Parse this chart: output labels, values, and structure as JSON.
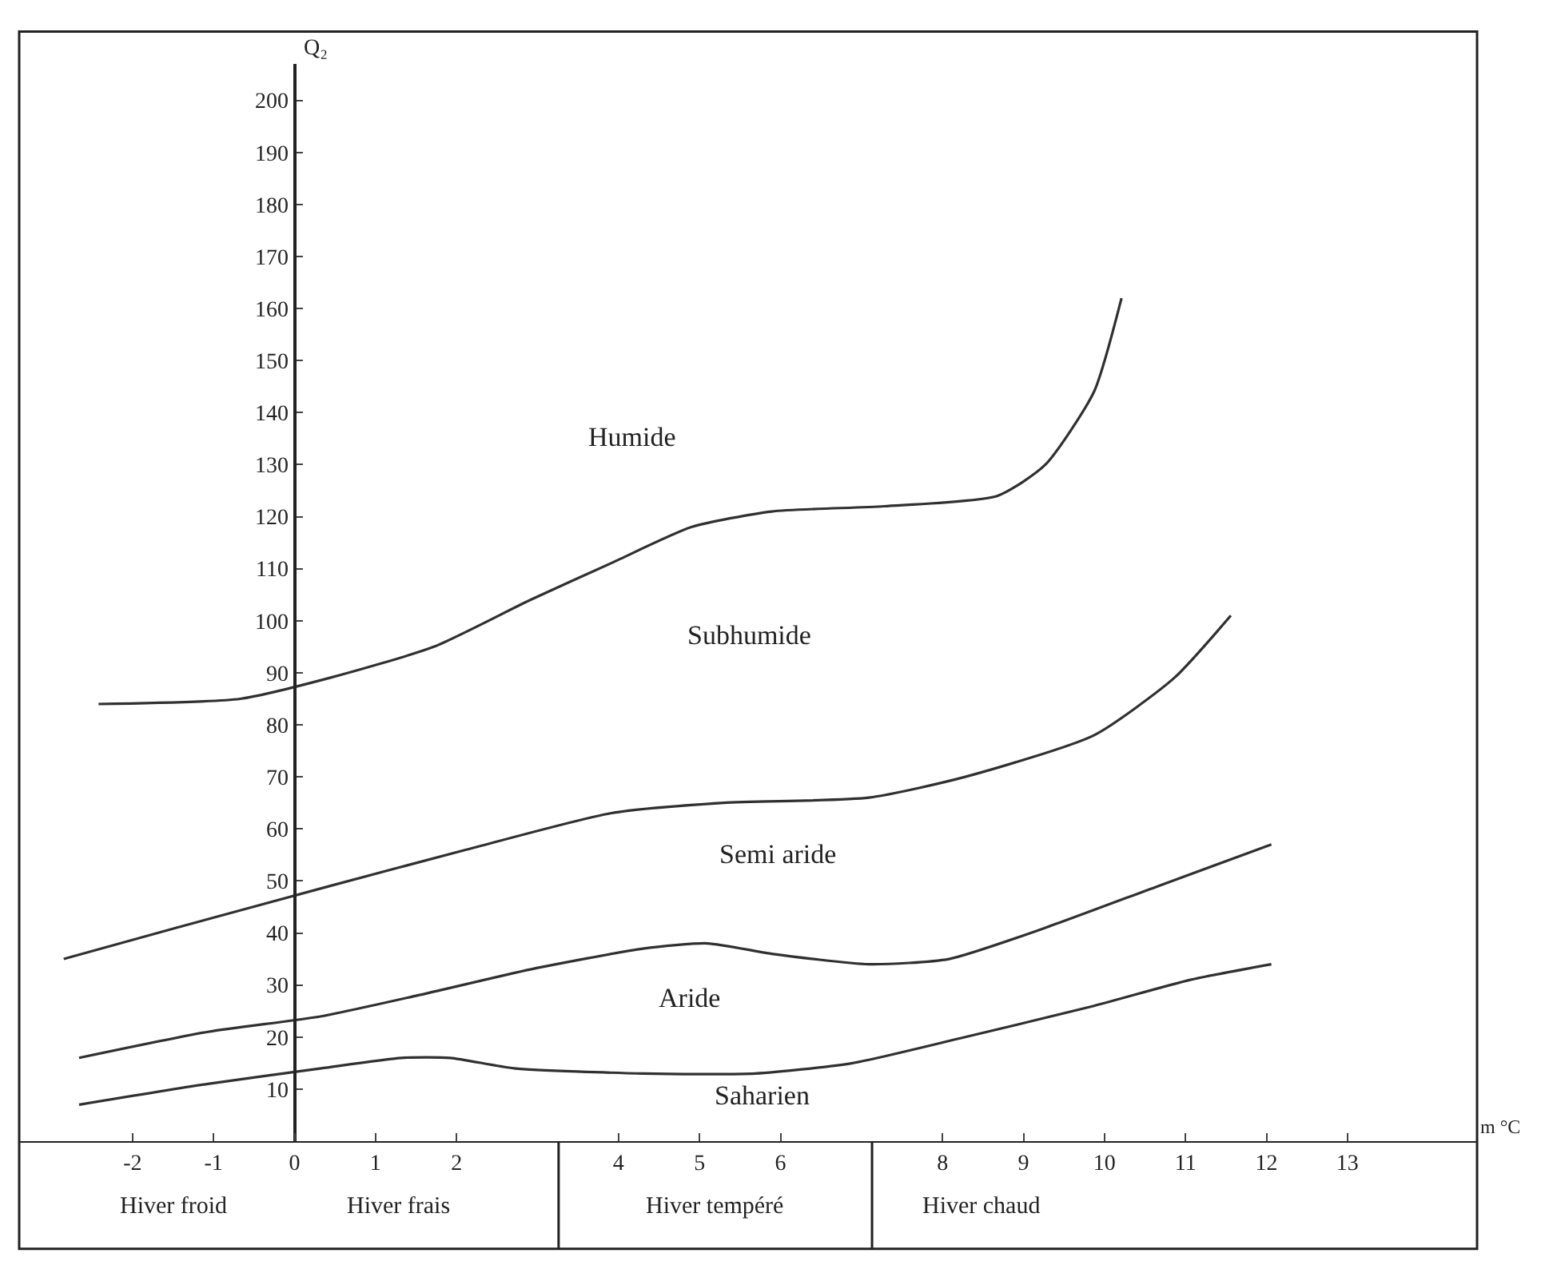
{
  "chart_data": {
    "type": "line",
    "xlabel": "m °C",
    "ylabel": "Q₂",
    "xlim": [
      -3.4,
      14.6
    ],
    "ylim": [
      0,
      207
    ],
    "xticks": [
      -2,
      -1,
      0,
      1,
      2,
      4,
      5,
      6,
      8,
      9,
      10,
      11,
      12,
      13
    ],
    "yticks": [
      10,
      20,
      30,
      40,
      50,
      60,
      70,
      80,
      90,
      100,
      110,
      120,
      130,
      140,
      150,
      160,
      170,
      180,
      190,
      200
    ],
    "marker": "none",
    "line_style": "solid",
    "series": [
      {
        "color": "#303030",
        "x": [
          -2.42,
          -0.67,
          0.43,
          1.72,
          2.91,
          3.9,
          4.9,
          5.89,
          7.28,
          8.68,
          9.27,
          9.87,
          10.21
        ],
        "values": [
          84,
          85,
          89,
          95,
          104,
          111,
          118,
          121,
          122,
          124,
          130,
          144,
          162
        ]
      },
      {
        "color": "#303030",
        "x": [
          -2.85,
          -1.46,
          0.43,
          2.12,
          3.9,
          5.3,
          7.09,
          8.28,
          9.87,
          10.86,
          11.56
        ],
        "values": [
          35,
          41,
          49,
          56,
          63,
          65,
          66,
          70,
          78,
          89,
          101
        ]
      },
      {
        "color": "#303030",
        "x": [
          -2.66,
          -1.07,
          0.33,
          1.52,
          2.91,
          4.3,
          5.1,
          5.89,
          7.09,
          8.08,
          9.27,
          10.66,
          12.06
        ],
        "values": [
          16,
          21,
          24,
          28,
          33,
          37,
          38,
          36,
          34,
          35,
          41,
          49,
          57
        ]
      },
      {
        "color": "#303030",
        "x": [
          -2.66,
          -1.07,
          0.33,
          1.32,
          1.92,
          2.71,
          4.3,
          5.69,
          6.89,
          8.28,
          9.87,
          11.06,
          12.06
        ],
        "values": [
          7,
          11,
          14,
          16,
          16,
          14,
          13,
          13,
          15,
          20,
          26,
          31,
          34
        ]
      }
    ],
    "annotations": [
      "Humide",
      "Subhumide",
      "Semi aride",
      "Aride",
      "Saharien",
      "Hiver froid",
      "Hiver frais",
      "Hiver tempéré",
      "Hiver chaud"
    ]
  }
}
